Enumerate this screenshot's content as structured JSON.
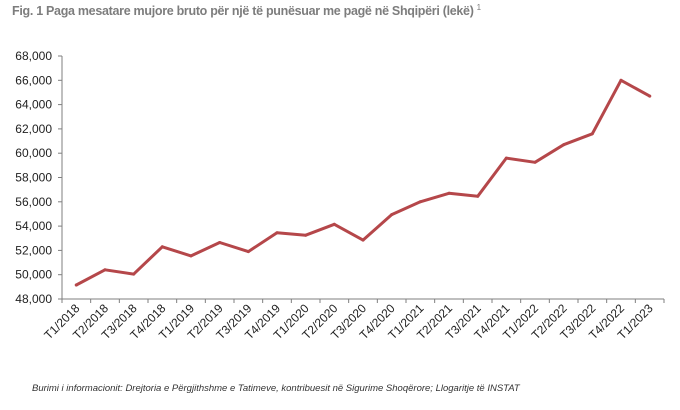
{
  "title": "Fig. 1 Paga mesatare mujore bruto për një të punësuar me pagë në Shqipëri (lekë)",
  "title_footnote": "1",
  "source": "Burimi i informacionit: Drejtoria e Përgjithshme e Tatimeve, kontribuesit në Sigurime Shoqërore; Llogaritje të INSTAT",
  "colors": {
    "line": "#b5474a",
    "axis": "#7f7f7f",
    "text": "#222222"
  },
  "chart_data": {
    "type": "line",
    "title": "Fig. 1 Paga mesatare mujore bruto për një të punësuar me pagë në Shqipëri (lekë)",
    "xlabel": "",
    "ylabel": "",
    "ylim": [
      48000,
      68000
    ],
    "yticks": [
      "48,000",
      "50,000",
      "52,000",
      "54,000",
      "56,000",
      "58,000",
      "60,000",
      "62,000",
      "64,000",
      "66,000",
      "68,000"
    ],
    "grid": false,
    "legend": "none",
    "categories": [
      "T1/2018",
      "T2/2018",
      "T3/2018",
      "T4/2018",
      "T1/2019",
      "T2/2019",
      "T3/2019",
      "T4/2019",
      "T1/2020",
      "T2/2020",
      "T3/2020",
      "T4/2020",
      "T1/2021",
      "T2/2021",
      "T3/2021",
      "T4/2021",
      "T1/2022",
      "T2/2022",
      "T3/2022",
      "T4/2022",
      "T1/2023"
    ],
    "series": [
      {
        "values": [
          49150,
          50400,
          50050,
          52300,
          51550,
          52650,
          51900,
          53450,
          53250,
          54150,
          52850,
          54950,
          56000,
          56700,
          56450,
          59600,
          59250,
          60700,
          61600,
          66000,
          64700
        ]
      }
    ]
  }
}
